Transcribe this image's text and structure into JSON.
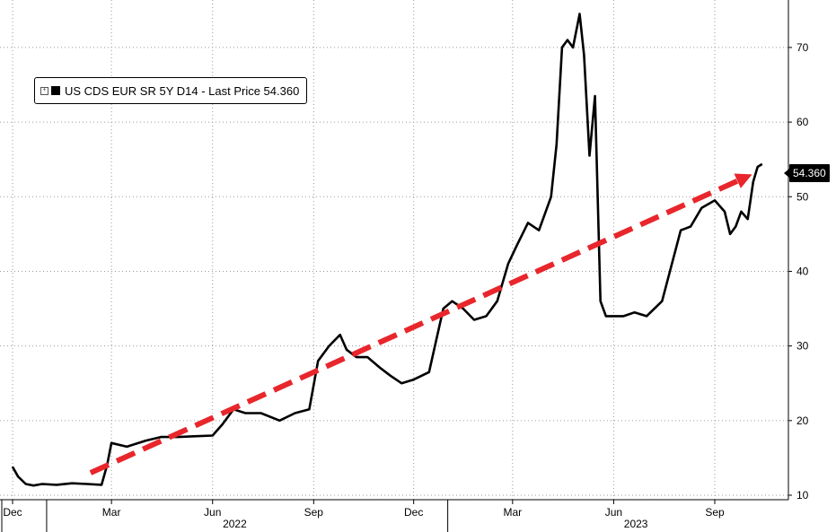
{
  "chart_data": {
    "type": "line",
    "title": "",
    "xlabel": "",
    "ylabel": "",
    "y_axis_side": "right",
    "ylim": [
      10,
      76
    ],
    "yticks": [
      10,
      20,
      30,
      40,
      50,
      60,
      70
    ],
    "grid": true,
    "x_ticks": [
      {
        "label": "Dec",
        "date": "2021-12-01"
      },
      {
        "label": "Mar",
        "date": "2022-03-01"
      },
      {
        "label": "Jun",
        "date": "2022-06-01"
      },
      {
        "label": "Sep",
        "date": "2022-09-01"
      },
      {
        "label": "Dec",
        "date": "2022-12-01"
      },
      {
        "label": "Mar",
        "date": "2023-03-01"
      },
      {
        "label": "Jun",
        "date": "2023-06-01"
      },
      {
        "label": "Sep",
        "date": "2023-09-01"
      }
    ],
    "year_labels": [
      {
        "label": "2022",
        "date": "2022-07-01"
      },
      {
        "label": "2023",
        "date": "2023-07-01"
      }
    ],
    "legend": {
      "position": "top-left",
      "text": "US CDS EUR SR 5Y D14 - Last Price 54.360"
    },
    "last_value_label": "54.360",
    "series": [
      {
        "color": "#000000",
        "x": [
          "2021-12-01",
          "2021-12-06",
          "2021-12-13",
          "2021-12-20",
          "2021-12-28",
          "2022-01-10",
          "2022-01-24",
          "2022-02-07",
          "2022-02-20",
          "2022-02-25",
          "2022-03-01",
          "2022-03-15",
          "2022-04-01",
          "2022-04-15",
          "2022-05-01",
          "2022-05-15",
          "2022-06-01",
          "2022-06-10",
          "2022-06-20",
          "2022-07-01",
          "2022-07-15",
          "2022-08-01",
          "2022-08-15",
          "2022-08-28",
          "2022-09-05",
          "2022-09-15",
          "2022-09-25",
          "2022-10-01",
          "2022-10-10",
          "2022-10-20",
          "2022-11-01",
          "2022-11-10",
          "2022-11-20",
          "2022-12-01",
          "2022-12-15",
          "2022-12-28",
          "2023-01-05",
          "2023-01-15",
          "2023-01-25",
          "2023-02-05",
          "2023-02-15",
          "2023-02-25",
          "2023-03-05",
          "2023-03-15",
          "2023-03-25",
          "2023-04-05",
          "2023-04-10",
          "2023-04-15",
          "2023-04-20",
          "2023-04-25",
          "2023-05-01",
          "2023-05-05",
          "2023-05-10",
          "2023-05-15",
          "2023-05-20",
          "2023-05-25",
          "2023-06-01",
          "2023-06-10",
          "2023-06-20",
          "2023-07-01",
          "2023-07-15",
          "2023-08-01",
          "2023-08-10",
          "2023-08-20",
          "2023-09-01",
          "2023-09-10",
          "2023-09-15",
          "2023-09-20",
          "2023-09-25",
          "2023-10-01",
          "2023-10-06",
          "2023-10-10",
          "2023-10-14"
        ],
        "values": [
          13.8,
          12.5,
          11.5,
          11.3,
          11.5,
          11.4,
          11.6,
          11.5,
          11.4,
          14.0,
          17.0,
          16.5,
          17.3,
          17.8,
          17.8,
          17.9,
          18.0,
          19.5,
          21.5,
          21.0,
          21.0,
          20.0,
          21.0,
          21.5,
          28.0,
          30.0,
          31.5,
          29.5,
          28.5,
          28.5,
          27.0,
          26.0,
          25.0,
          25.5,
          26.5,
          35.0,
          36.0,
          35.0,
          33.5,
          34.0,
          36.0,
          41.0,
          43.5,
          46.5,
          45.5,
          50.0,
          57.0,
          70.0,
          71.0,
          70.0,
          74.5,
          69.0,
          55.5,
          63.5,
          36.0,
          34.0,
          34.0,
          34.0,
          34.5,
          34.0,
          36.0,
          45.5,
          46.0,
          48.5,
          49.5,
          48.0,
          45.0,
          46.0,
          48.0,
          47.0,
          52.0,
          54.0,
          54.36
        ]
      }
    ],
    "annotations": [
      {
        "type": "arrow",
        "color": "#e8262b",
        "style": "dashed",
        "from": {
          "date": "2022-02-10",
          "value": 13.0
        },
        "to": {
          "date": "2023-10-05",
          "value": 53.0
        }
      }
    ]
  }
}
